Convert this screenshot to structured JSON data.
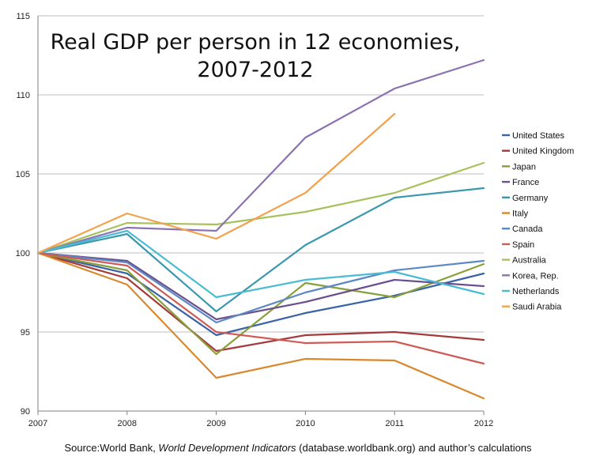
{
  "chart_data": {
    "type": "line",
    "title": [
      "Real GDP per person in 12 economies,",
      "2007-2012"
    ],
    "xlabel": "",
    "ylabel": "",
    "x": [
      2007,
      2008,
      2009,
      2010,
      2011,
      2012
    ],
    "x_tick_labels": [
      "2007",
      "2008",
      "2009",
      "2010",
      "2011",
      "2012"
    ],
    "ylim": [
      90,
      115
    ],
    "y_ticks": [
      90,
      95,
      100,
      105,
      110,
      115
    ],
    "grid": "horizontal",
    "legend_position": "right",
    "series": [
      {
        "name": "United States",
        "color": "#3a63a5",
        "values": [
          100,
          98.7,
          94.8,
          96.2,
          97.3,
          98.7
        ]
      },
      {
        "name": "United Kingdom",
        "color": "#a63a3a",
        "values": [
          100,
          98.4,
          93.8,
          94.8,
          95.0,
          94.5
        ]
      },
      {
        "name": "Japan",
        "color": "#88a03c",
        "values": [
          100,
          98.9,
          93.6,
          98.1,
          97.2,
          99.3
        ]
      },
      {
        "name": "France",
        "color": "#6c4f8f",
        "values": [
          100,
          99.5,
          95.8,
          96.9,
          98.3,
          97.9
        ]
      },
      {
        "name": "Germany",
        "color": "#3a98ad",
        "values": [
          100,
          101.2,
          96.3,
          100.5,
          103.5,
          104.1
        ]
      },
      {
        "name": "Italy",
        "color": "#d9882d",
        "values": [
          100,
          98.0,
          92.1,
          93.3,
          93.2,
          90.8
        ]
      },
      {
        "name": "Canada",
        "color": "#5b89c6",
        "values": [
          100,
          99.4,
          95.6,
          97.5,
          98.9,
          99.5
        ]
      },
      {
        "name": "Spain",
        "color": "#cf5b56",
        "values": [
          100,
          99.2,
          95.0,
          94.3,
          94.4,
          93.0
        ]
      },
      {
        "name": "Australia",
        "color": "#a5c25c",
        "values": [
          100,
          101.9,
          101.8,
          102.6,
          103.8,
          105.7
        ]
      },
      {
        "name": "Korea, Rep.",
        "color": "#8b73b2",
        "values": [
          100,
          101.6,
          101.4,
          107.3,
          110.4,
          112.2
        ]
      },
      {
        "name": "Netherlands",
        "color": "#49bcd3",
        "values": [
          100,
          101.4,
          97.2,
          98.3,
          98.8,
          97.4
        ]
      },
      {
        "name": "Saudi Arabia",
        "color": "#f2a24d",
        "values": [
          100,
          102.5,
          100.9,
          103.8,
          108.8,
          null
        ]
      }
    ]
  },
  "source": {
    "prefix": "Source:World Bank, ",
    "italic": "World Development Indicators",
    "suffix": " (database.worldbank.org) and author’s calculations"
  }
}
